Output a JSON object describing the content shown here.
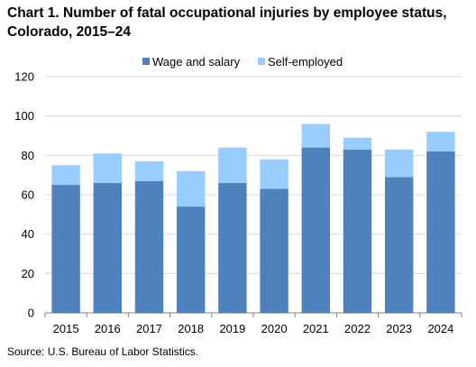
{
  "title_line1": "Chart 1. Number of fatal occupational injuries by employee status,",
  "title_line2": "Colorado, 2015–24",
  "source": "Source: U.S. Bureau  of Labor Statistics.",
  "colors": {
    "wage": "#4f81bd",
    "self": "#99ccff",
    "grid": "#d9d9d9",
    "axis": "#808080"
  },
  "chart_data": {
    "type": "bar",
    "stacked": true,
    "categories": [
      "2015",
      "2016",
      "2017",
      "2018",
      "2019",
      "2020",
      "2021",
      "2022",
      "2023",
      "2024"
    ],
    "series": [
      {
        "name": "Wage and salary",
        "values": [
          65,
          66,
          67,
          54,
          66,
          63,
          84,
          83,
          69,
          82
        ]
      },
      {
        "name": "Self-employed",
        "values": [
          10,
          15,
          10,
          18,
          18,
          15,
          12,
          6,
          14,
          10
        ]
      }
    ],
    "ylim": [
      0,
      120
    ],
    "yticks": [
      0,
      20,
      40,
      60,
      80,
      100,
      120
    ],
    "grid": true,
    "legend": "top-center"
  }
}
